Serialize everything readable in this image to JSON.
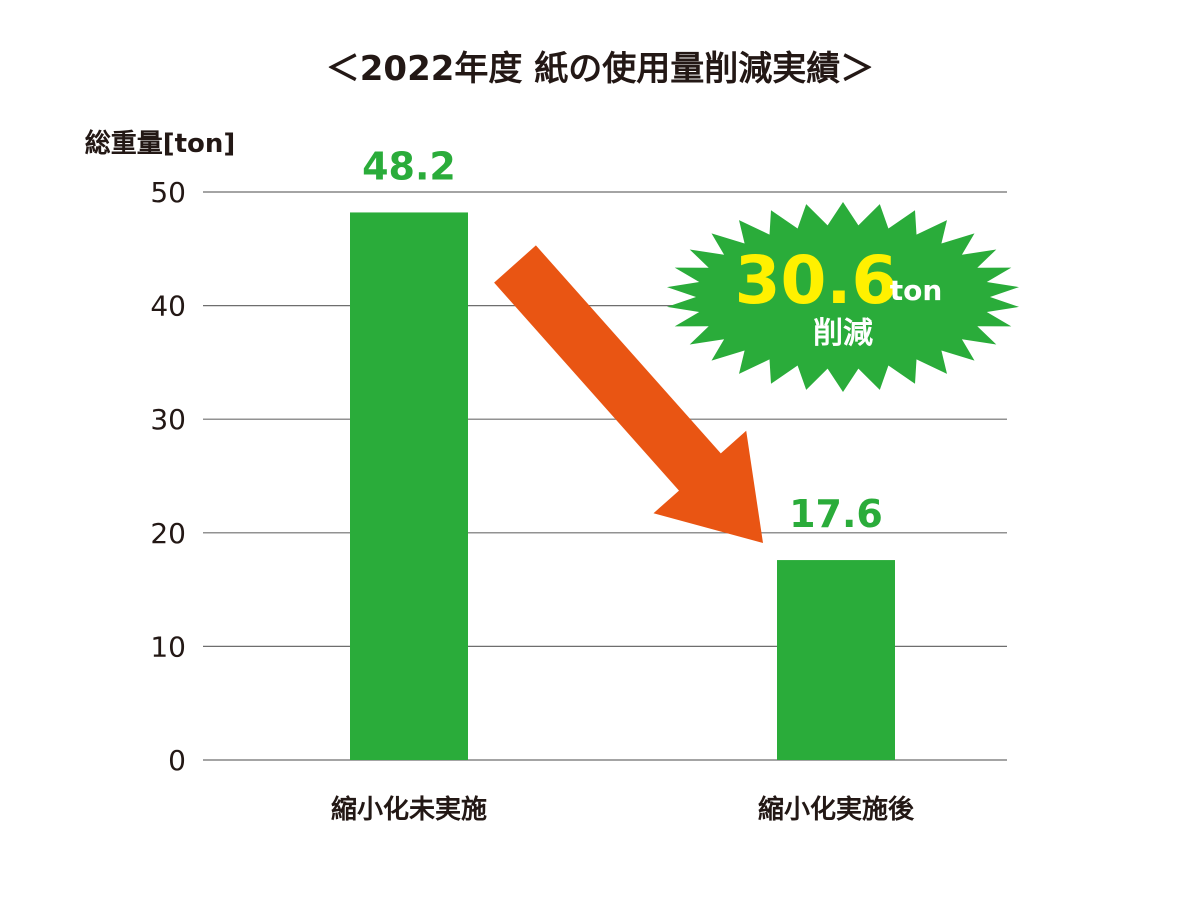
{
  "chart_data": {
    "type": "bar",
    "title": "＜2022年度 紙の使用量削減実績＞",
    "ylabel": "総重量[ton]",
    "xlabel": "",
    "ylim": [
      0,
      50
    ],
    "yticks": [
      0,
      10,
      20,
      30,
      40,
      50
    ],
    "categories": [
      "縮小化未実施",
      "縮小化実施後"
    ],
    "values": [
      48.2,
      17.6
    ],
    "data_labels": [
      "48.2",
      "17.6"
    ],
    "grid": true,
    "bar_color": "#2aac3a",
    "annotation": {
      "value": "30.6",
      "unit": "ton",
      "text": "削減",
      "burst_color": "#2aac3a",
      "value_color": "#fff100",
      "text_color": "#ffffff",
      "arrow_color": "#e95513"
    }
  }
}
